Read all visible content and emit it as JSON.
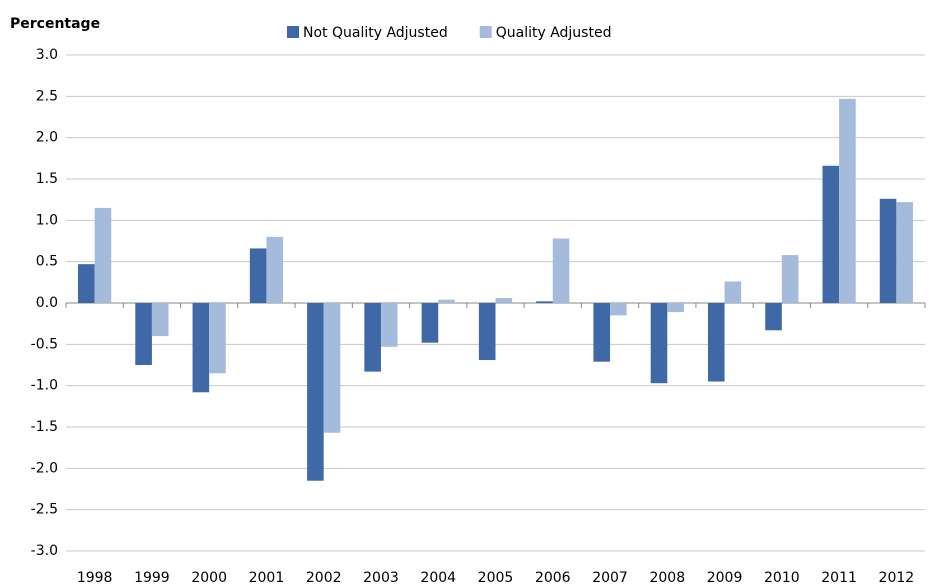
{
  "chart_data": {
    "type": "bar",
    "y_label": "Percentage",
    "categories": [
      "1998",
      "1999",
      "2000",
      "2001",
      "2002",
      "2003",
      "2004",
      "2005",
      "2006",
      "2007",
      "2008",
      "2009",
      "2010",
      "2011",
      "2012"
    ],
    "series": [
      {
        "name": "Not Quality Adjusted",
        "color": "#3e69a6",
        "values": [
          0.47,
          -0.75,
          -1.08,
          0.66,
          -2.15,
          -0.83,
          -0.48,
          -0.69,
          0.02,
          -0.71,
          -0.97,
          -0.95,
          -0.33,
          1.66,
          1.26
        ]
      },
      {
        "name": "Quality Adjusted",
        "color": "#a5bbdc",
        "values": [
          1.15,
          -0.4,
          -0.85,
          0.8,
          -1.57,
          -0.53,
          0.04,
          0.06,
          0.78,
          -0.15,
          -0.11,
          0.26,
          0.58,
          2.47,
          1.22
        ]
      }
    ],
    "ylim": [
      -3,
      3
    ],
    "yticks": [
      {
        "value": 3,
        "label": "3.0"
      },
      2.5,
      {
        "value": 2,
        "label": "2.0"
      },
      1.5,
      {
        "value": 1,
        "label": "1.0"
      },
      0.5,
      {
        "value": 0,
        "label": "0.0"
      },
      -0.5,
      {
        "value": -1,
        "label": "-1.0"
      },
      -1.5,
      {
        "value": -2,
        "label": "-2.0"
      },
      -2.5,
      {
        "value": -3,
        "label": "-3.0"
      }
    ],
    "grid": true
  }
}
